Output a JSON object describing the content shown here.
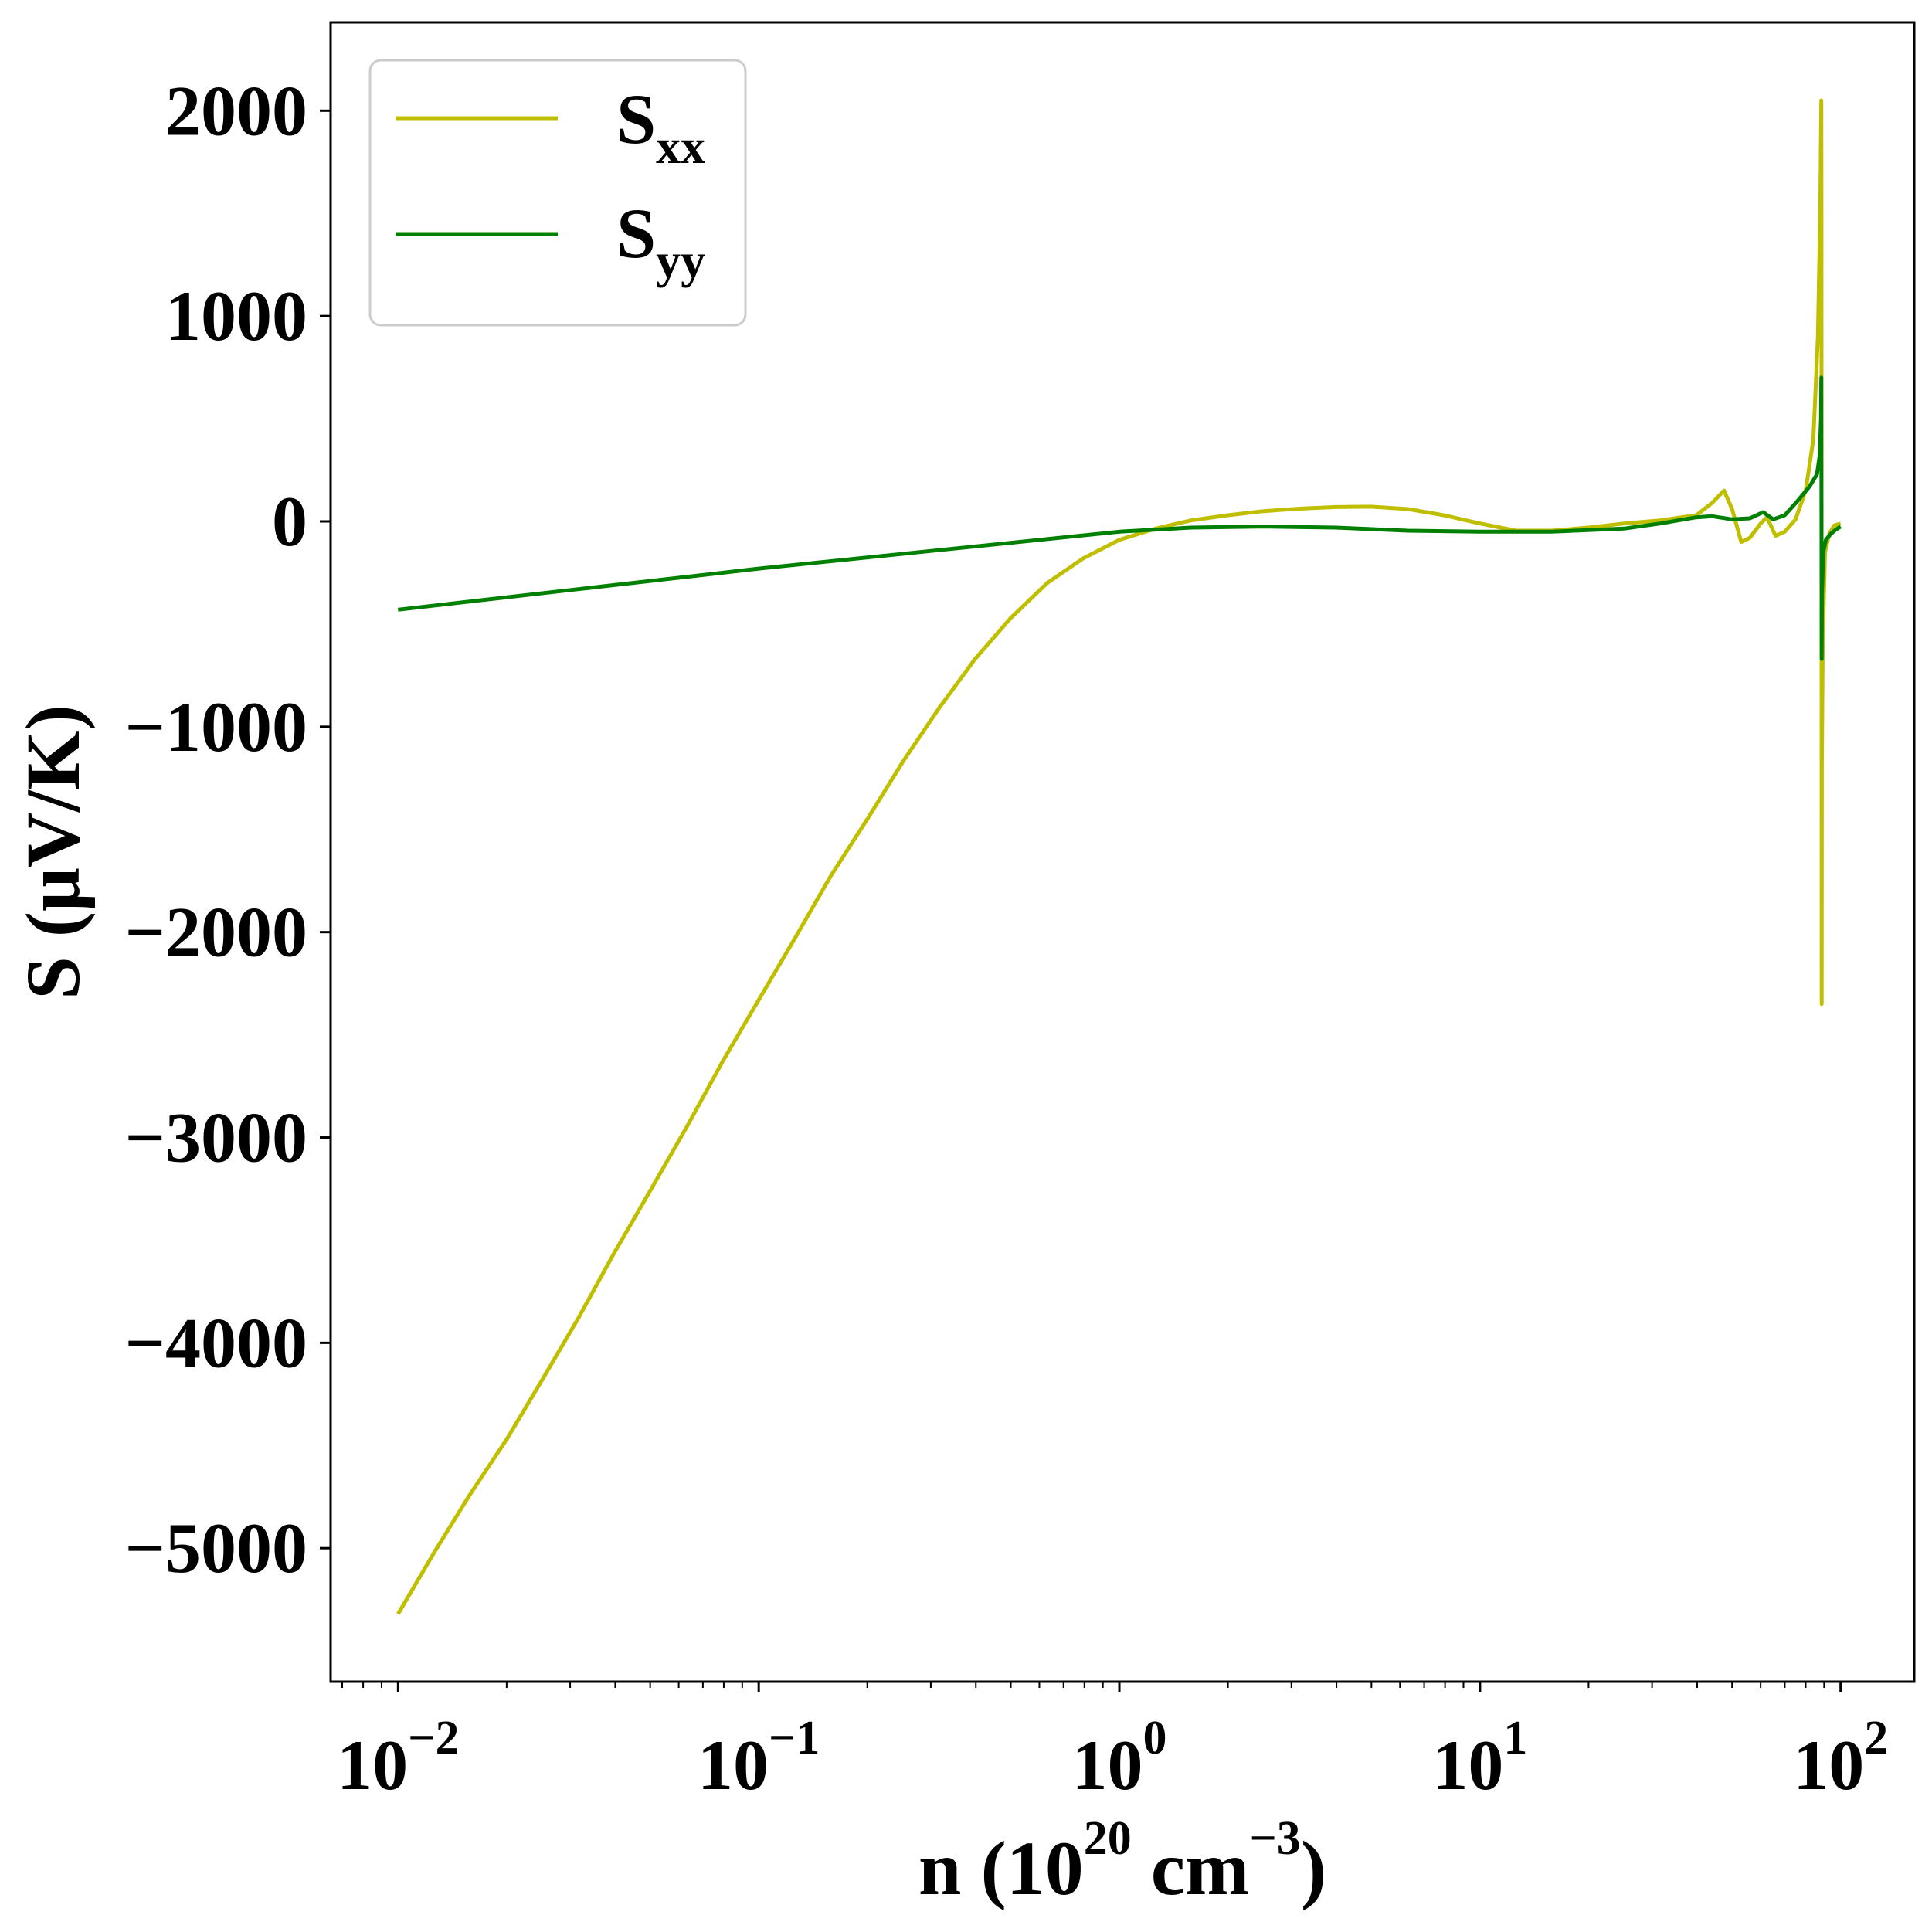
{
  "chart_data": {
    "type": "line",
    "title": "",
    "xlabel": {
      "prefix": "n (10",
      "exp1": "20",
      "middle": " cm",
      "exp2": "−3",
      "suffix": ")"
    },
    "ylabel": "S (μV/K)",
    "xscale": "log",
    "xlim": [
      0.0065,
      160
    ],
    "ylim": [
      -5650,
      2430
    ],
    "xticks": [
      {
        "value": 0.01,
        "base": "10",
        "exp": "−2"
      },
      {
        "value": 0.1,
        "base": "10",
        "exp": "−1"
      },
      {
        "value": 1,
        "base": "10",
        "exp": "0"
      },
      {
        "value": 10,
        "base": "10",
        "exp": "1"
      },
      {
        "value": 100,
        "base": "10",
        "exp": "2"
      }
    ],
    "yticks": [
      {
        "value": 2000,
        "label": "2000"
      },
      {
        "value": 1000,
        "label": "1000"
      },
      {
        "value": 0,
        "label": "0"
      },
      {
        "value": -1000,
        "label": "−1000"
      },
      {
        "value": -2000,
        "label": "−2000"
      },
      {
        "value": -3000,
        "label": "−3000"
      },
      {
        "value": -4000,
        "label": "−4000"
      },
      {
        "value": -5000,
        "label": "−5000"
      }
    ],
    "legend_position": "top-left",
    "series": [
      {
        "name": "Sxx",
        "label_main": "S",
        "label_sub": "xx",
        "color": "#bfbf00",
        "points": [
          [
            0.01,
            -5320
          ],
          [
            0.0126,
            -5020
          ],
          [
            0.0158,
            -4740
          ],
          [
            0.02,
            -4470
          ],
          [
            0.0251,
            -4180
          ],
          [
            0.0316,
            -3880
          ],
          [
            0.0398,
            -3560
          ],
          [
            0.05,
            -3260
          ],
          [
            0.0631,
            -2950
          ],
          [
            0.0794,
            -2630
          ],
          [
            0.1,
            -2330
          ],
          [
            0.126,
            -2030
          ],
          [
            0.158,
            -1730
          ],
          [
            0.2,
            -1450
          ],
          [
            0.251,
            -1170
          ],
          [
            0.316,
            -910
          ],
          [
            0.398,
            -670
          ],
          [
            0.5,
            -470
          ],
          [
            0.631,
            -300
          ],
          [
            0.794,
            -180
          ],
          [
            1.0,
            -90
          ],
          [
            1.26,
            -35
          ],
          [
            1.58,
            5
          ],
          [
            2.0,
            30
          ],
          [
            2.51,
            50
          ],
          [
            3.16,
            62
          ],
          [
            3.98,
            70
          ],
          [
            5.0,
            72
          ],
          [
            6.31,
            60
          ],
          [
            7.94,
            30
          ],
          [
            10.0,
            -10
          ],
          [
            12.6,
            -45
          ],
          [
            15.8,
            -45
          ],
          [
            20.0,
            -30
          ],
          [
            25.1,
            -10
          ],
          [
            31.6,
            5
          ],
          [
            39.8,
            30
          ],
          [
            44.0,
            90
          ],
          [
            47.5,
            150
          ],
          [
            50.0,
            60
          ],
          [
            53.0,
            -100
          ],
          [
            56.0,
            -80
          ],
          [
            60.0,
            -10
          ],
          [
            62.5,
            20
          ],
          [
            66.0,
            -70
          ],
          [
            70.0,
            -50
          ],
          [
            75.0,
            10
          ],
          [
            80.0,
            150
          ],
          [
            84.0,
            400
          ],
          [
            86.5,
            900
          ],
          [
            87.8,
            1500
          ],
          [
            88.4,
            2050
          ],
          [
            88.5,
            1500
          ],
          [
            88.6,
            -2350
          ],
          [
            88.7,
            -1200
          ],
          [
            89.2,
            -600
          ],
          [
            90.5,
            -150
          ],
          [
            93.0,
            -60
          ],
          [
            96.0,
            -20
          ],
          [
            100.0,
            -10
          ]
        ]
      },
      {
        "name": "Syy",
        "label_main": "S",
        "label_sub": "yy",
        "color": "#008000",
        "points": [
          [
            0.01,
            -430
          ],
          [
            0.0316,
            -330
          ],
          [
            0.1,
            -230
          ],
          [
            0.316,
            -140
          ],
          [
            1.0,
            -50
          ],
          [
            1.58,
            -30
          ],
          [
            2.51,
            -25
          ],
          [
            3.98,
            -30
          ],
          [
            6.31,
            -45
          ],
          [
            10.0,
            -50
          ],
          [
            15.8,
            -50
          ],
          [
            25.1,
            -35
          ],
          [
            31.6,
            -10
          ],
          [
            39.8,
            20
          ],
          [
            44.0,
            25
          ],
          [
            50.0,
            10
          ],
          [
            56.0,
            15
          ],
          [
            61.0,
            45
          ],
          [
            65.0,
            10
          ],
          [
            70.0,
            30
          ],
          [
            76.0,
            100
          ],
          [
            82.0,
            170
          ],
          [
            86.0,
            230
          ],
          [
            87.5,
            320
          ],
          [
            88.2,
            500
          ],
          [
            88.4,
            700
          ],
          [
            88.5,
            100
          ],
          [
            88.6,
            -670
          ],
          [
            88.8,
            -350
          ],
          [
            89.5,
            -150
          ],
          [
            91.0,
            -90
          ],
          [
            94.0,
            -60
          ],
          [
            97.0,
            -40
          ],
          [
            100.0,
            -25
          ]
        ]
      }
    ]
  }
}
